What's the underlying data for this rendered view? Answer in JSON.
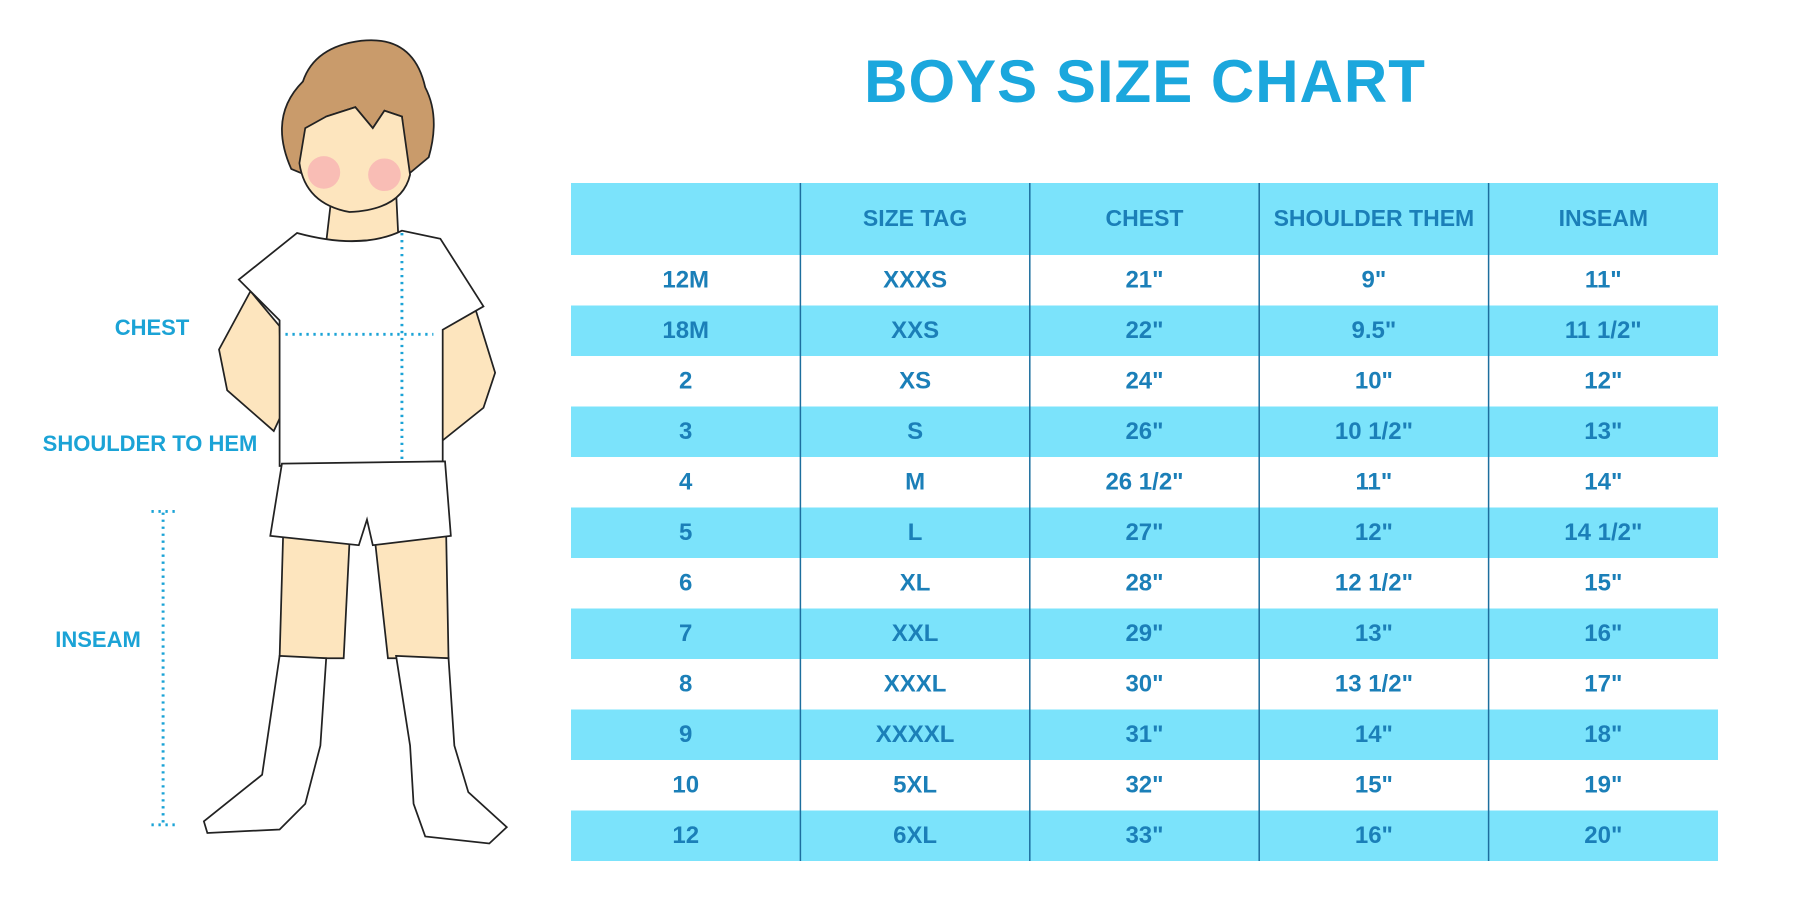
{
  "title": "BOYS SIZE CHART",
  "figure_labels": [
    "CHEST",
    "SHOULDER TO HEM",
    "INSEAM"
  ],
  "table": {
    "header": [
      "SIZE TAG",
      "CHEST",
      "SHOULDER THEM",
      "INSEAM"
    ],
    "rows": [
      [
        "12M",
        "XXXS",
        "21\"",
        "9\"",
        "11\""
      ],
      [
        "18M",
        "XXS",
        "22\"",
        "9.5\"",
        "11 1/2\""
      ],
      [
        "2",
        "XS",
        "24\"",
        "10\"",
        "12\""
      ],
      [
        "3",
        "S",
        "26\"",
        "10 1/2\"",
        "13\""
      ],
      [
        "4",
        "M",
        "26 1/2\"",
        "11\"",
        "14\""
      ],
      [
        "5",
        "L",
        "27\"",
        "12\"",
        "14 1/2\""
      ],
      [
        "6",
        "XL",
        "28\"",
        "12 1/2\"",
        "15\""
      ],
      [
        "7",
        "XXL",
        "29\"",
        "13\"",
        "16\""
      ],
      [
        "8",
        "XXXL",
        "30\"",
        "13 1/2\"",
        "17\""
      ],
      [
        "9",
        "XXXXL",
        "31\"",
        "14\"",
        "18\""
      ],
      [
        "10",
        "5XL",
        "32\"",
        "15\"",
        "19\""
      ],
      [
        "12",
        "6XL",
        "33\"",
        "16\"",
        "20\""
      ]
    ]
  }
}
